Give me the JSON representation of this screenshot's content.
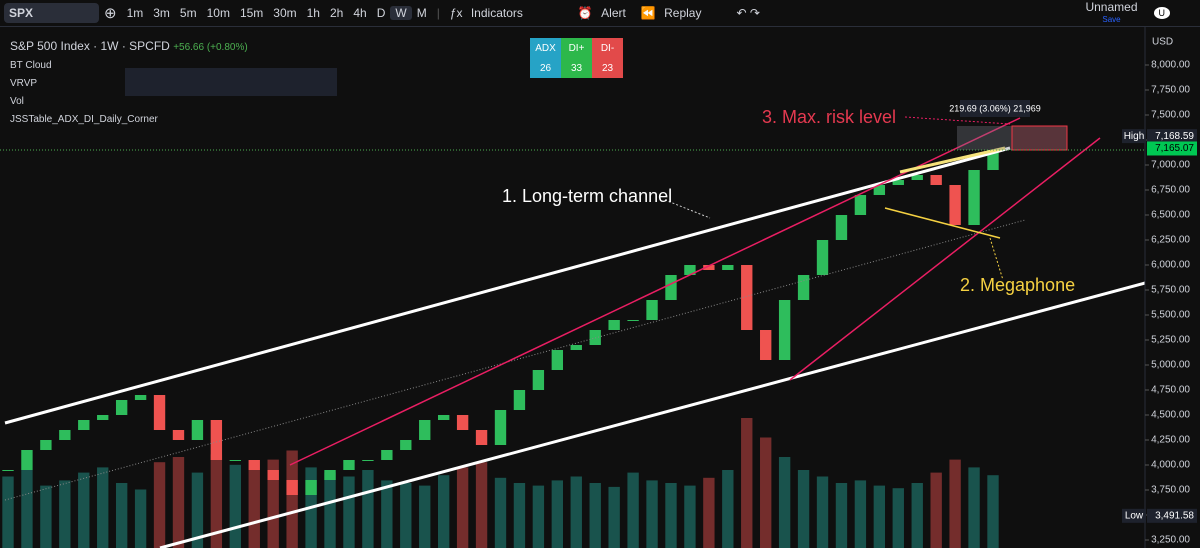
{
  "toolbar": {
    "symbol": "SPX",
    "intervals": [
      "1m",
      "3m",
      "5m",
      "10m",
      "15m",
      "30m",
      "1h",
      "2h",
      "4h",
      "D",
      "W",
      "M"
    ],
    "indicators": "Indicators",
    "alert": "Alert",
    "replay": "Replay",
    "layout_name": "Unnamed",
    "save": "Save",
    "user": "U"
  },
  "legend": {
    "title": "S&P 500 Index · 1W · SPCFD",
    "change": "+56.66 (+0.80%)",
    "indicators": [
      "BT Cloud",
      "VRVP",
      "Vol",
      "JSSTable_ADX_DI_Daily_Corner"
    ]
  },
  "adx_table": {
    "headers": [
      "ADX",
      "DI+",
      "DI-"
    ],
    "values": [
      26,
      33,
      23
    ]
  },
  "chart_data": {
    "type": "candlestick",
    "currency": "USD",
    "values": [
      3950,
      4150,
      4250,
      4350,
      4450,
      4500,
      4650,
      4700,
      4350,
      4250,
      4450,
      4050,
      4050,
      3950,
      3850,
      3700,
      3850,
      3950,
      4050,
      4050,
      4150,
      4250,
      4450,
      4500,
      4350,
      4200,
      4550,
      4750,
      4950,
      5150,
      5200,
      5350,
      5450,
      5450,
      5650,
      5900,
      6000,
      5950,
      6000,
      5350,
      5050,
      5650,
      5900,
      6250,
      6500,
      6700,
      6800,
      6850,
      6900,
      6800,
      6400,
      6950,
      7150
    ],
    "volume": [
      55,
      60,
      48,
      52,
      58,
      62,
      50,
      45,
      66,
      70,
      58,
      72,
      64,
      60,
      68,
      75,
      62,
      58,
      55,
      60,
      52,
      50,
      48,
      56,
      62,
      66,
      54,
      50,
      48,
      52,
      55,
      50,
      47,
      58,
      52,
      50,
      48,
      54,
      60,
      100,
      85,
      70,
      60,
      55,
      50,
      52,
      48,
      46,
      50,
      58,
      68,
      62,
      56
    ],
    "ylim": [
      3170,
      8350
    ],
    "yticks": [
      {
        "value": 3250,
        "label": "3,250.00"
      },
      {
        "value": 3500,
        "label": "3,500.00"
      },
      {
        "value": 3750,
        "label": "3,750.00"
      },
      {
        "value": 4000,
        "label": "4,000.00"
      },
      {
        "value": 4250,
        "label": "4,250.00"
      },
      {
        "value": 4500,
        "label": "4,500.00"
      },
      {
        "value": 4750,
        "label": "4,750.00"
      },
      {
        "value": 5000,
        "label": "5,000.00"
      },
      {
        "value": 5250,
        "label": "5,250.00"
      },
      {
        "value": 5500,
        "label": "5,500.00"
      },
      {
        "value": 5750,
        "label": "5,750.00"
      },
      {
        "value": 6000,
        "label": "6,000.00"
      },
      {
        "value": 6250,
        "label": "6,250.00"
      },
      {
        "value": 6500,
        "label": "6,500.00"
      },
      {
        "value": 6750,
        "label": "6,750.00"
      },
      {
        "value": 7000,
        "label": "7,000.00"
      },
      {
        "value": 7250,
        "label": "7,250.00"
      },
      {
        "value": 7500,
        "label": "7,500.00"
      },
      {
        "value": 7750,
        "label": "7,750.00"
      },
      {
        "value": 8000,
        "label": "8,000.00"
      }
    ],
    "price_labels": [
      {
        "name": "High",
        "value": 7168.59,
        "label": "7,168.59"
      },
      {
        "value": 7165.07,
        "label": "7,165.07"
      },
      {
        "name": "Low",
        "value": 3491.58,
        "label": "3,491.58"
      }
    ],
    "annotations": {
      "channel": "1. Long-term channel",
      "megaphone": "2. Megaphone",
      "risk": "3. Max. risk level",
      "measure": "219.69 (3.06%) 21,969"
    }
  }
}
